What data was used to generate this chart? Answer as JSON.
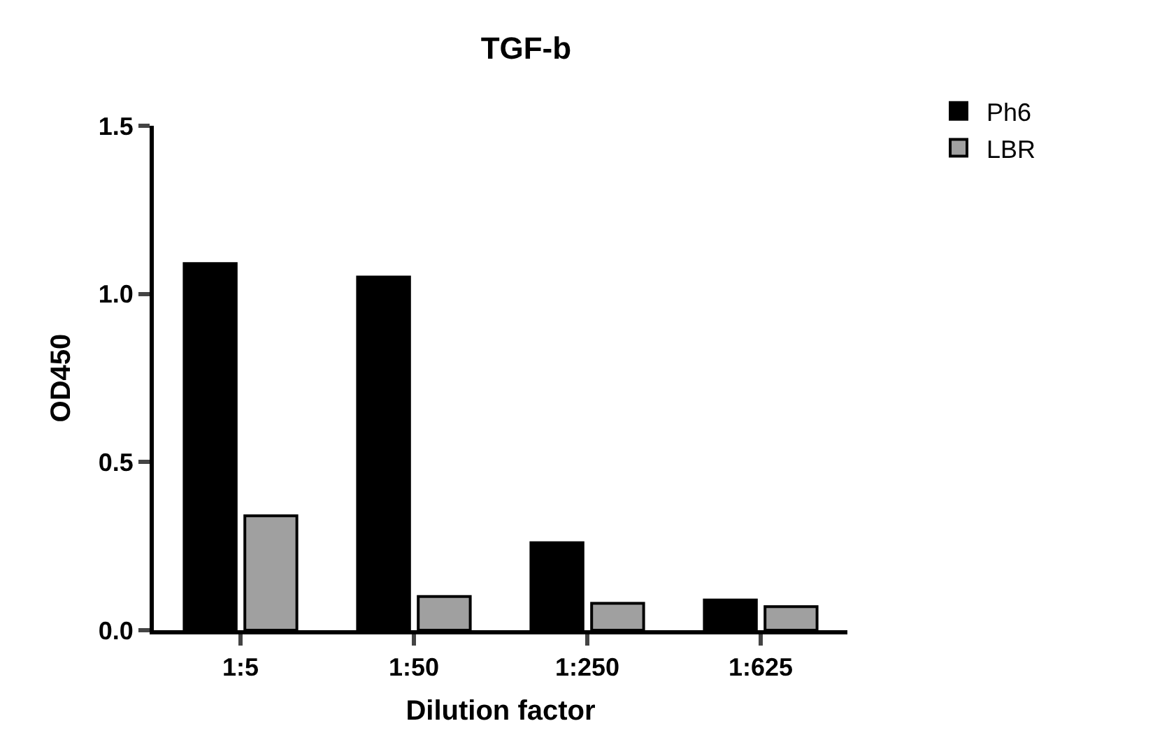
{
  "chart_data": {
    "type": "bar",
    "title": "TGF-b",
    "xlabel": "Dilution factor",
    "ylabel": "OD450",
    "categories": [
      "1:5",
      "1:50",
      "1:250",
      "1:625"
    ],
    "series": [
      {
        "name": "Ph6",
        "color": "#000000",
        "values": [
          1.09,
          1.05,
          0.26,
          0.09
        ]
      },
      {
        "name": "LBR",
        "color": "#a0a0a0",
        "values": [
          0.34,
          0.1,
          0.08,
          0.07
        ]
      }
    ],
    "ylim": [
      0,
      1.5
    ],
    "yticks": [
      {
        "value": 0,
        "label": "0.0"
      },
      {
        "value": 0.5,
        "label": "0.5"
      },
      {
        "value": 1,
        "label": "1.0"
      },
      {
        "value": 1.5,
        "label": "1.5"
      }
    ],
    "legend": "top right"
  }
}
